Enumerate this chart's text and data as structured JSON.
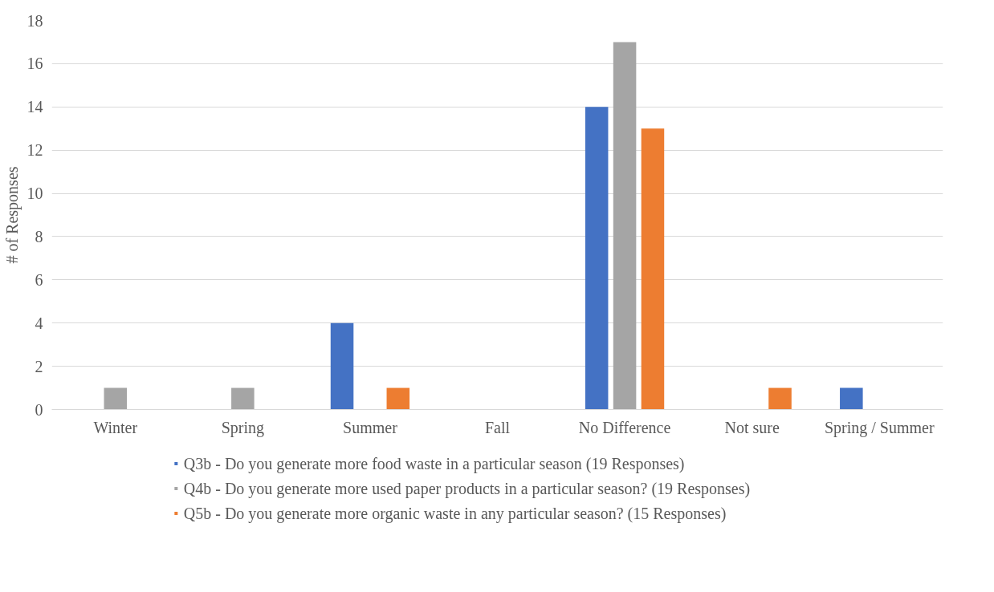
{
  "chart_data": {
    "type": "bar",
    "ylabel": "# of Responses",
    "categories": [
      "Winter",
      "Spring",
      "Summer",
      "Fall",
      "No Difference",
      "Not sure",
      "Spring / Summer"
    ],
    "series": [
      {
        "name": "Q3b - Do you generate more food waste in a particular season (19 Responses)",
        "color": "#4472c4",
        "values": [
          0,
          0,
          4,
          0,
          14,
          0,
          1
        ]
      },
      {
        "name": "Q4b - Do you generate more used paper products in a particular season? (19 Responses)",
        "color": "#a5a5a5",
        "values": [
          1,
          1,
          0,
          0,
          17,
          0,
          0
        ]
      },
      {
        "name": "Q5b - Do you generate more organic waste in any particular season? (15 Responses)",
        "color": "#ed7d31",
        "values": [
          0,
          0,
          1,
          0,
          13,
          1,
          0
        ]
      }
    ],
    "ylim": [
      0,
      18
    ],
    "yticks": [
      0,
      2,
      4,
      6,
      8,
      10,
      12,
      14,
      16,
      18
    ],
    "grid": "y",
    "legend": "bottom"
  }
}
